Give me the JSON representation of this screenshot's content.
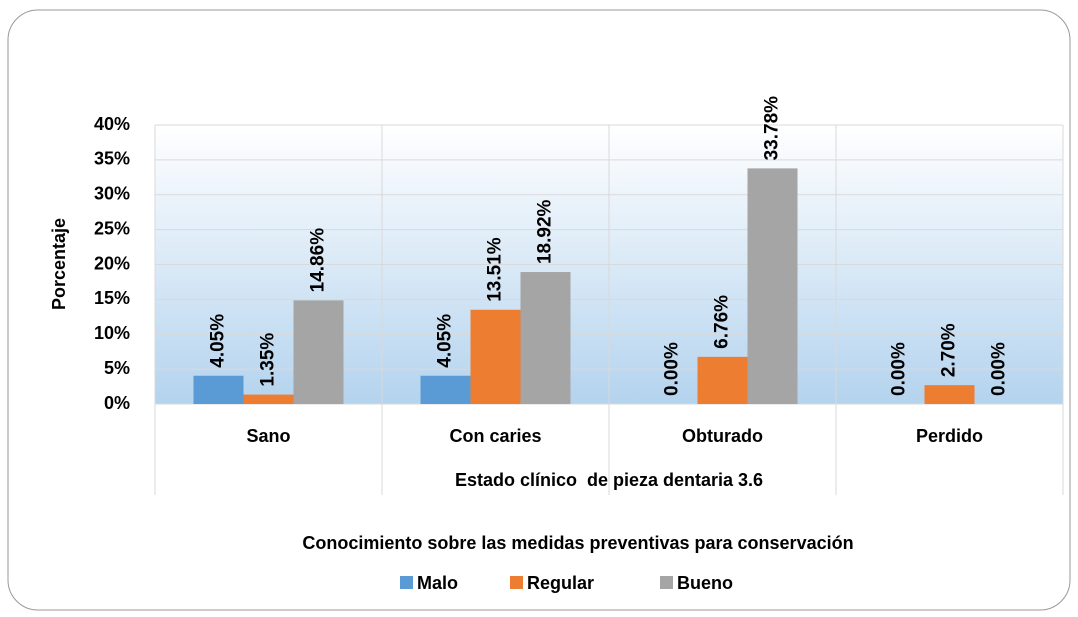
{
  "chart_data": {
    "type": "bar",
    "xlabel": "Estado clínico  de pieza dentaria 3.6",
    "ylabel": "Porcentaje",
    "legend_title": "Conocimiento sobre las medidas preventivas para conservación",
    "categories": [
      "Sano",
      "Con caries",
      "Obturado",
      "Perdido"
    ],
    "series": [
      {
        "name": "Malo",
        "color": "#5b9bd5",
        "values": [
          4.05,
          4.05,
          0,
          0
        ],
        "value_labels": [
          "4.05%",
          "4.05%",
          "0.00%",
          "0.00%"
        ]
      },
      {
        "name": "Regular",
        "color": "#ed7d31",
        "values": [
          1.35,
          13.51,
          6.76,
          2.7
        ],
        "value_labels": [
          "1.35%",
          "13.51%",
          "6.76%",
          "2.70%"
        ]
      },
      {
        "name": "Bueno",
        "color": "#a5a5a5",
        "values": [
          14.86,
          18.92,
          33.78,
          0
        ],
        "value_labels": [
          "14.86%",
          "18.92%",
          "33.78%",
          "0.00%"
        ]
      }
    ],
    "ylim": [
      0,
      40
    ],
    "yticks": [
      {
        "value": 0,
        "label": "0%"
      },
      {
        "value": 5,
        "label": "5%"
      },
      {
        "value": 10,
        "label": "10%"
      },
      {
        "value": 15,
        "label": "15%"
      },
      {
        "value": 20,
        "label": "20%"
      },
      {
        "value": 25,
        "label": "25%"
      },
      {
        "value": 30,
        "label": "30%"
      },
      {
        "value": 35,
        "label": "35%"
      },
      {
        "value": 40,
        "label": "40%"
      }
    ],
    "grid": true,
    "legend": "bottom"
  }
}
